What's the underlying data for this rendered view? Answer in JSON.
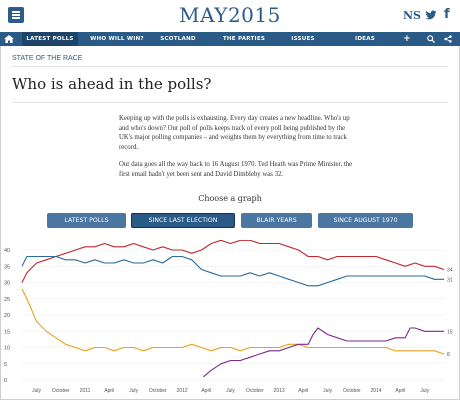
{
  "brand": "MAY2015",
  "header": {
    "ns_label": "NS",
    "twitter_icon": "twitter-icon",
    "facebook_glyph": "f",
    "accent": "#2d5c8a"
  },
  "nav": {
    "items": [
      "LATEST POLLS",
      "WHO WILL WIN?",
      "SCOTLAND",
      "THE PARTIES",
      "ISSUES",
      "IDEAS"
    ],
    "plus": "+",
    "active_index": 0
  },
  "kicker": "STATE OF THE RACE",
  "title": "Who is ahead in the polls?",
  "intro": {
    "p1": "Keeping up with the polls is exhausting. Every day creates a new headline. Who's up and who's down? Our poll of polls keeps track of every poll being published by the UK's major polling companies – and weights them by everything from time to track record.",
    "p2": "Our data goes all the way back to 16 August 1970. Ted Heath was Prime Minister, the first email hadn't yet been sent and David Dimbleby was 32."
  },
  "choose": "Choose a graph",
  "graph_buttons": [
    "LATEST POLLS",
    "SINCE LAST ELECTION",
    "BLAIR YEARS",
    "SINCE AUGUST 1970"
  ],
  "graph_active_index": 1,
  "chart_data": {
    "type": "line",
    "title": "",
    "xlabel": "",
    "ylabel": "",
    "ylim": [
      0,
      40
    ],
    "y_ticks": [
      0,
      5,
      10,
      15,
      20,
      25,
      30,
      35,
      40
    ],
    "x_ticks": [
      "July",
      "October",
      "2011",
      "April",
      "July",
      "October",
      "2012",
      "April",
      "July",
      "October",
      "2013",
      "April",
      "July",
      "October",
      "2014",
      "April",
      "July"
    ],
    "x_tick_positions": [
      2010.5,
      2010.75,
      2011.0,
      2011.25,
      2011.5,
      2011.75,
      2012.0,
      2012.25,
      2012.5,
      2012.75,
      2013.0,
      2013.25,
      2013.5,
      2013.75,
      2014.0,
      2014.25,
      2014.5
    ],
    "xlim": [
      2010.35,
      2014.72
    ],
    "grid": true,
    "series": [
      {
        "color": "#c0272d",
        "end_label": "34",
        "points": [
          [
            2010.35,
            30
          ],
          [
            2010.4,
            33
          ],
          [
            2010.5,
            36
          ],
          [
            2010.6,
            37
          ],
          [
            2010.7,
            38
          ],
          [
            2010.8,
            39
          ],
          [
            2010.9,
            40
          ],
          [
            2011.0,
            41
          ],
          [
            2011.1,
            41
          ],
          [
            2011.2,
            42
          ],
          [
            2011.3,
            41
          ],
          [
            2011.4,
            41
          ],
          [
            2011.5,
            42
          ],
          [
            2011.6,
            41
          ],
          [
            2011.7,
            40
          ],
          [
            2011.8,
            41
          ],
          [
            2011.9,
            40
          ],
          [
            2012.0,
            40
          ],
          [
            2012.1,
            39
          ],
          [
            2012.2,
            40
          ],
          [
            2012.3,
            42
          ],
          [
            2012.4,
            43
          ],
          [
            2012.5,
            42
          ],
          [
            2012.6,
            43
          ],
          [
            2012.7,
            43
          ],
          [
            2012.8,
            42
          ],
          [
            2012.9,
            42
          ],
          [
            2013.0,
            42
          ],
          [
            2013.1,
            41
          ],
          [
            2013.2,
            40
          ],
          [
            2013.3,
            38
          ],
          [
            2013.4,
            38
          ],
          [
            2013.5,
            37
          ],
          [
            2013.6,
            38
          ],
          [
            2013.7,
            38
          ],
          [
            2013.8,
            38
          ],
          [
            2013.9,
            38
          ],
          [
            2014.0,
            38
          ],
          [
            2014.1,
            37
          ],
          [
            2014.2,
            36
          ],
          [
            2014.3,
            35
          ],
          [
            2014.4,
            36
          ],
          [
            2014.5,
            35
          ],
          [
            2014.6,
            35
          ],
          [
            2014.7,
            34
          ]
        ]
      },
      {
        "color": "#2b6a99",
        "end_label": "31",
        "points": [
          [
            2010.35,
            35
          ],
          [
            2010.4,
            38
          ],
          [
            2010.5,
            38
          ],
          [
            2010.6,
            38
          ],
          [
            2010.7,
            38
          ],
          [
            2010.8,
            37
          ],
          [
            2010.9,
            37
          ],
          [
            2011.0,
            36
          ],
          [
            2011.1,
            37
          ],
          [
            2011.2,
            36
          ],
          [
            2011.3,
            36
          ],
          [
            2011.4,
            37
          ],
          [
            2011.5,
            36
          ],
          [
            2011.6,
            36
          ],
          [
            2011.7,
            37
          ],
          [
            2011.8,
            36
          ],
          [
            2011.9,
            38
          ],
          [
            2012.0,
            38
          ],
          [
            2012.1,
            37
          ],
          [
            2012.2,
            34
          ],
          [
            2012.3,
            33
          ],
          [
            2012.4,
            32
          ],
          [
            2012.5,
            32
          ],
          [
            2012.6,
            32
          ],
          [
            2012.7,
            33
          ],
          [
            2012.8,
            32
          ],
          [
            2012.9,
            33
          ],
          [
            2013.0,
            32
          ],
          [
            2013.1,
            31
          ],
          [
            2013.2,
            30
          ],
          [
            2013.3,
            29
          ],
          [
            2013.4,
            29
          ],
          [
            2013.5,
            30
          ],
          [
            2013.6,
            31
          ],
          [
            2013.7,
            32
          ],
          [
            2013.8,
            32
          ],
          [
            2013.9,
            32
          ],
          [
            2014.0,
            32
          ],
          [
            2014.1,
            32
          ],
          [
            2014.2,
            32
          ],
          [
            2014.3,
            32
          ],
          [
            2014.4,
            32
          ],
          [
            2014.5,
            32
          ],
          [
            2014.6,
            31
          ],
          [
            2014.7,
            31
          ]
        ]
      },
      {
        "color": "#e8a21f",
        "end_label": "8",
        "points": [
          [
            2010.35,
            28
          ],
          [
            2010.4,
            25
          ],
          [
            2010.5,
            18
          ],
          [
            2010.6,
            15
          ],
          [
            2010.7,
            13
          ],
          [
            2010.8,
            11
          ],
          [
            2010.9,
            10
          ],
          [
            2011.0,
            9
          ],
          [
            2011.1,
            10
          ],
          [
            2011.2,
            10
          ],
          [
            2011.3,
            9
          ],
          [
            2011.4,
            10
          ],
          [
            2011.5,
            10
          ],
          [
            2011.6,
            9
          ],
          [
            2011.7,
            10
          ],
          [
            2011.8,
            10
          ],
          [
            2011.9,
            10
          ],
          [
            2012.0,
            10
          ],
          [
            2012.1,
            11
          ],
          [
            2012.2,
            10
          ],
          [
            2012.3,
            9
          ],
          [
            2012.4,
            10
          ],
          [
            2012.5,
            10
          ],
          [
            2012.6,
            9
          ],
          [
            2012.7,
            10
          ],
          [
            2012.8,
            10
          ],
          [
            2012.9,
            10
          ],
          [
            2013.0,
            10
          ],
          [
            2013.1,
            11
          ],
          [
            2013.2,
            11
          ],
          [
            2013.3,
            10
          ],
          [
            2013.4,
            10
          ],
          [
            2013.5,
            10
          ],
          [
            2013.6,
            10
          ],
          [
            2013.7,
            10
          ],
          [
            2013.8,
            10
          ],
          [
            2013.9,
            10
          ],
          [
            2014.0,
            10
          ],
          [
            2014.1,
            10
          ],
          [
            2014.2,
            9
          ],
          [
            2014.3,
            9
          ],
          [
            2014.4,
            9
          ],
          [
            2014.5,
            9
          ],
          [
            2014.6,
            9
          ],
          [
            2014.7,
            8
          ]
        ]
      },
      {
        "color": "#7b2a8d",
        "end_label": "15",
        "points": [
          [
            2012.22,
            1
          ],
          [
            2012.3,
            3
          ],
          [
            2012.4,
            5
          ],
          [
            2012.5,
            6
          ],
          [
            2012.6,
            6
          ],
          [
            2012.7,
            7
          ],
          [
            2012.8,
            8
          ],
          [
            2012.9,
            9
          ],
          [
            2013.0,
            9
          ],
          [
            2013.1,
            10
          ],
          [
            2013.2,
            11
          ],
          [
            2013.3,
            11
          ],
          [
            2013.35,
            14
          ],
          [
            2013.4,
            16
          ],
          [
            2013.5,
            14
          ],
          [
            2013.6,
            13
          ],
          [
            2013.7,
            12
          ],
          [
            2013.8,
            12
          ],
          [
            2013.9,
            12
          ],
          [
            2014.0,
            12
          ],
          [
            2014.1,
            12
          ],
          [
            2014.2,
            13
          ],
          [
            2014.3,
            13
          ],
          [
            2014.35,
            16
          ],
          [
            2014.4,
            16
          ],
          [
            2014.5,
            15
          ],
          [
            2014.6,
            15
          ],
          [
            2014.7,
            15
          ]
        ]
      }
    ]
  }
}
